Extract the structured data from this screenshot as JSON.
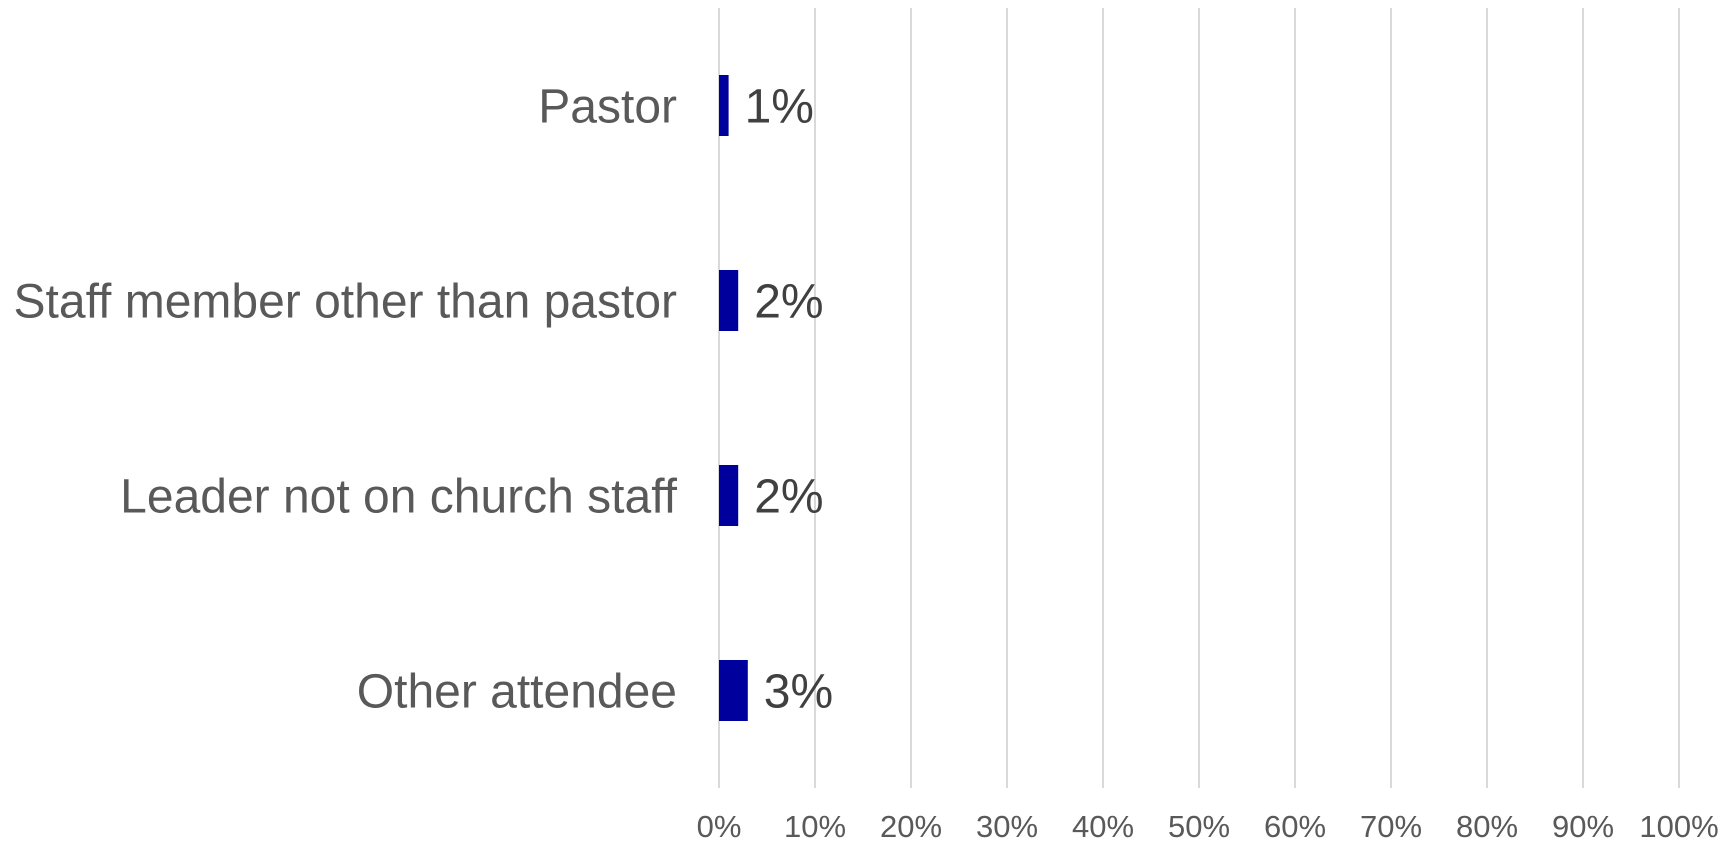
{
  "chart_data": {
    "type": "bar",
    "orientation": "horizontal",
    "categories": [
      "Pastor",
      "Staff member other than pastor",
      "Leader not on church staff",
      "Other attendee"
    ],
    "values": [
      1,
      2,
      2,
      3
    ],
    "data_labels": [
      "1%",
      "2%",
      "2%",
      "3%"
    ],
    "xlim": [
      0,
      100
    ],
    "x_ticks": [
      0,
      10,
      20,
      30,
      40,
      50,
      60,
      70,
      80,
      90,
      100
    ],
    "x_tick_labels": [
      "0%",
      "10%",
      "20%",
      "30%",
      "40%",
      "50%",
      "60%",
      "70%",
      "80%",
      "90%",
      "100%"
    ],
    "grid": "vertical",
    "legend": "none",
    "bar_color": "#00009c",
    "grid_color": "#d9d9d9",
    "label_color": "#595959"
  }
}
